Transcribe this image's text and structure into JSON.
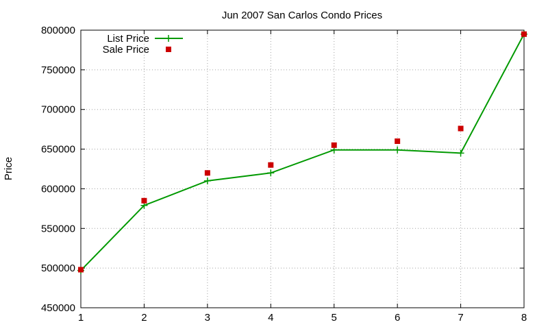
{
  "chart_data": {
    "type": "line",
    "title": "Jun 2007 San Carlos Condo Prices",
    "xlabel": "",
    "ylabel": "Price",
    "x": [
      1,
      2,
      3,
      4,
      5,
      6,
      7,
      8
    ],
    "xlim": [
      1,
      8
    ],
    "ylim": [
      450000,
      800000
    ],
    "xticks": [
      1,
      2,
      3,
      4,
      5,
      6,
      7,
      8
    ],
    "yticks": [
      450000,
      500000,
      550000,
      600000,
      650000,
      700000,
      750000,
      800000
    ],
    "grid": true,
    "legend_position": "top-left",
    "series": [
      {
        "name": "List Price",
        "style": "line-cross",
        "color": "#009900",
        "values": [
          497000,
          579000,
          610000,
          620000,
          649000,
          649000,
          645000,
          795000
        ]
      },
      {
        "name": "Sale Price",
        "style": "square",
        "color": "#cc0000",
        "values": [
          498000,
          585000,
          620000,
          630000,
          655000,
          660000,
          676000,
          795000
        ]
      }
    ]
  }
}
